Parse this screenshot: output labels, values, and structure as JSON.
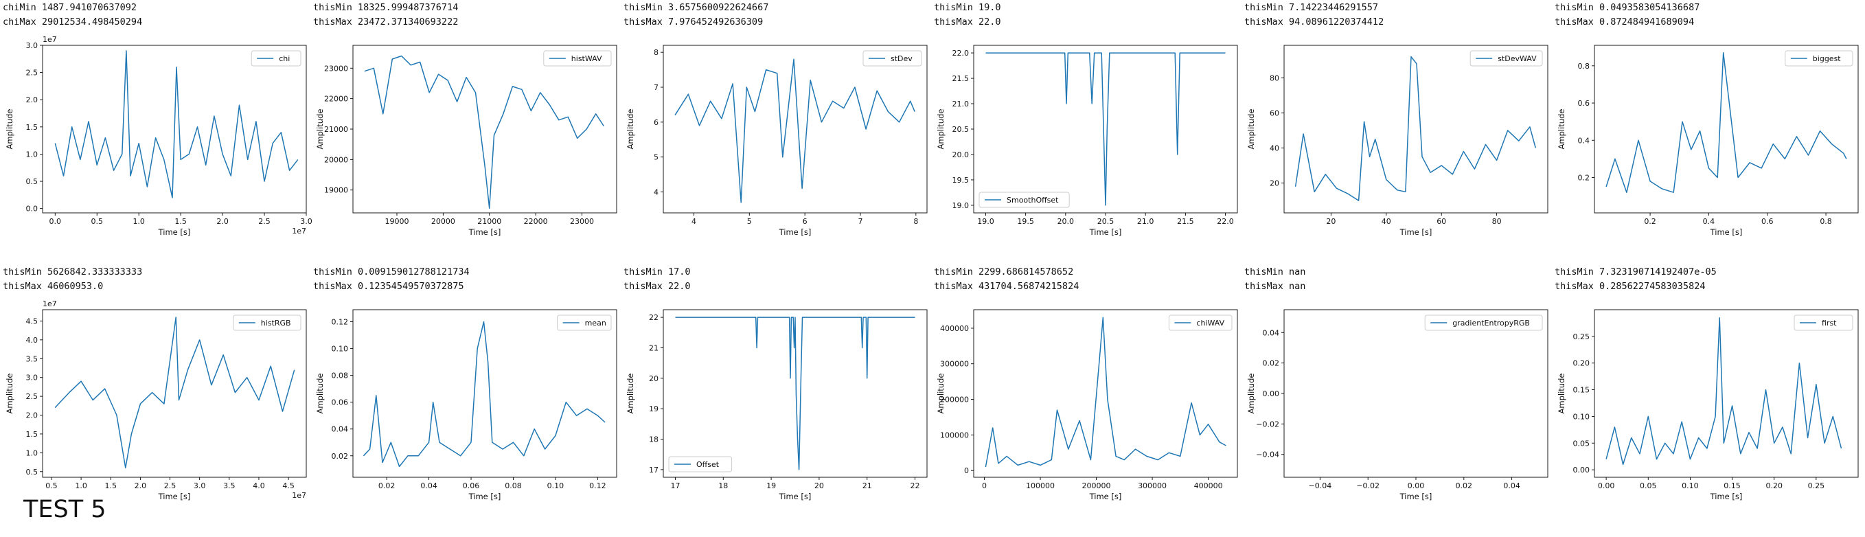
{
  "caption": "TEST 5",
  "line_color": "#1f77b4",
  "chart_data": [
    {
      "type": "line",
      "header": [
        "chiMin 1487.941070637092",
        "chiMax 29012534.498450294"
      ],
      "legend": "chi",
      "legend_loc": "upper right",
      "xlabel": "Time [s]",
      "ylabel": "Amplitude",
      "xlim": [
        -0.15,
        3.0
      ],
      "ylim": [
        -0.08,
        3.0
      ],
      "xticks": [
        0.0,
        0.5,
        1.0,
        1.5,
        2.0,
        2.5,
        3.0
      ],
      "xticklabels": [
        "0.0",
        "0.5",
        "1.0",
        "1.5",
        "2.0",
        "2.5",
        "3.0"
      ],
      "yticks": [
        0.0,
        0.5,
        1.0,
        1.5,
        2.0,
        2.5,
        3.0
      ],
      "yticklabels": [
        "0.0",
        "0.5",
        "1.0",
        "1.5",
        "2.0",
        "2.5",
        "3.0"
      ],
      "xoffset": "1e7",
      "yoffset": "1e7",
      "x": [
        0.0,
        0.1,
        0.2,
        0.3,
        0.4,
        0.5,
        0.6,
        0.7,
        0.8,
        0.85,
        0.9,
        1.0,
        1.1,
        1.2,
        1.3,
        1.4,
        1.45,
        1.5,
        1.6,
        1.7,
        1.8,
        1.9,
        2.0,
        2.1,
        2.2,
        2.3,
        2.4,
        2.5,
        2.6,
        2.7,
        2.8,
        2.9
      ],
      "y": [
        1.2,
        0.6,
        1.5,
        0.9,
        1.6,
        0.8,
        1.3,
        0.7,
        1.0,
        2.9,
        0.6,
        1.2,
        0.4,
        1.3,
        0.9,
        0.2,
        2.6,
        0.9,
        1.0,
        1.5,
        0.8,
        1.7,
        1.0,
        0.6,
        1.9,
        0.9,
        1.6,
        0.5,
        1.2,
        1.4,
        0.7,
        0.9
      ]
    },
    {
      "type": "line",
      "header": [
        "thisMin 18325.999487376714",
        "thisMax 23472.371340693222"
      ],
      "legend": "histWAV",
      "legend_loc": "upper right",
      "xlabel": "Time [s]",
      "ylabel": "Amplitude",
      "xlim": [
        18050,
        23750
      ],
      "ylim": [
        18250,
        23750
      ],
      "xticks": [
        19000,
        20000,
        21000,
        22000,
        23000
      ],
      "xticklabels": [
        "19000",
        "20000",
        "21000",
        "22000",
        "23000"
      ],
      "yticks": [
        19000,
        20000,
        21000,
        22000,
        23000
      ],
      "yticklabels": [
        "19000",
        "20000",
        "21000",
        "22000",
        "23000"
      ],
      "x": [
        18300,
        18500,
        18700,
        18900,
        19100,
        19300,
        19500,
        19700,
        19900,
        20100,
        20300,
        20500,
        20700,
        20900,
        21000,
        21100,
        21300,
        21500,
        21700,
        21900,
        22100,
        22300,
        22500,
        22700,
        22900,
        23100,
        23300,
        23472
      ],
      "y": [
        22900,
        23000,
        21500,
        23300,
        23400,
        23100,
        23200,
        22200,
        22800,
        22600,
        21900,
        22700,
        22200,
        19800,
        18400,
        20800,
        21500,
        22400,
        22300,
        21600,
        22200,
        21800,
        21300,
        21400,
        20700,
        21000,
        21500,
        21100
      ]
    },
    {
      "type": "line",
      "header": [
        "thisMin 3.6575600922624667",
        "thisMax 7.976452492636309"
      ],
      "legend": "stDev",
      "legend_loc": "upper right",
      "xlabel": "Time [s]",
      "ylabel": "Amplitude",
      "xlim": [
        3.45,
        8.2
      ],
      "ylim": [
        3.4,
        8.2
      ],
      "xticks": [
        4,
        5,
        6,
        7,
        8
      ],
      "xticklabels": [
        "4",
        "5",
        "6",
        "7",
        "8"
      ],
      "yticks": [
        4,
        5,
        6,
        7,
        8
      ],
      "yticklabels": [
        "4",
        "5",
        "6",
        "7",
        "8"
      ],
      "x": [
        3.66,
        3.9,
        4.1,
        4.3,
        4.5,
        4.7,
        4.85,
        4.95,
        5.1,
        5.3,
        5.5,
        5.6,
        5.8,
        5.95,
        6.1,
        6.3,
        6.5,
        6.7,
        6.9,
        7.1,
        7.3,
        7.5,
        7.7,
        7.9,
        7.98
      ],
      "y": [
        6.2,
        6.8,
        5.9,
        6.6,
        6.1,
        7.1,
        3.7,
        7.0,
        6.3,
        7.5,
        7.4,
        5.0,
        7.8,
        4.1,
        7.2,
        6.0,
        6.6,
        6.4,
        7.0,
        5.8,
        6.9,
        6.3,
        6.0,
        6.6,
        6.3
      ]
    },
    {
      "type": "line",
      "header": [
        "thisMin 19.0",
        "thisMax 22.0"
      ],
      "legend": "SmoothOffset",
      "legend_loc": "lower left",
      "xlabel": "Time [s]",
      "ylabel": "Amplitude",
      "xlim": [
        18.85,
        22.15
      ],
      "ylim": [
        18.85,
        22.15
      ],
      "xticks": [
        19.0,
        19.5,
        20.0,
        20.5,
        21.0,
        21.5,
        22.0
      ],
      "xticklabels": [
        "19.0",
        "19.5",
        "20.0",
        "20.5",
        "21.0",
        "21.5",
        "22.0"
      ],
      "yticks": [
        19.0,
        19.5,
        20.0,
        20.5,
        21.0,
        21.5,
        22.0
      ],
      "yticklabels": [
        "19.0",
        "19.5",
        "20.0",
        "20.5",
        "21.0",
        "21.5",
        "22.0"
      ],
      "x": [
        19.0,
        19.99,
        20.01,
        20.03,
        20.3,
        20.33,
        20.36,
        20.45,
        20.5,
        20.52,
        20.55,
        21.37,
        21.4,
        21.43,
        22.0
      ],
      "y": [
        22.0,
        22.0,
        21.0,
        22.0,
        22.0,
        21.0,
        22.0,
        22.0,
        19.0,
        20.5,
        22.0,
        22.0,
        20.0,
        22.0,
        22.0
      ]
    },
    {
      "type": "line",
      "header": [
        "thisMin 7.14223446291557",
        "thisMax 94.08961220374412"
      ],
      "legend": "stDevWAV",
      "legend_loc": "upper right",
      "xlabel": "Time [s]",
      "ylabel": "Amplitude",
      "xlim": [
        3.0,
        98.5
      ],
      "ylim": [
        3.0,
        98.5
      ],
      "xticks": [
        20,
        40,
        60,
        80
      ],
      "xticklabels": [
        "20",
        "40",
        "60",
        "80"
      ],
      "yticks": [
        20,
        40,
        60,
        80
      ],
      "yticklabels": [
        "20",
        "40",
        "60",
        "80"
      ],
      "x": [
        7.14,
        10,
        14,
        18,
        22,
        26,
        30,
        32,
        34,
        36,
        40,
        44,
        47,
        49,
        51,
        53,
        56,
        60,
        64,
        68,
        72,
        76,
        80,
        84,
        88,
        92,
        94.09
      ],
      "y": [
        18,
        48,
        15,
        25,
        17,
        14,
        10,
        55,
        35,
        45,
        22,
        16,
        15,
        92,
        88,
        35,
        26,
        30,
        25,
        38,
        28,
        42,
        33,
        50,
        44,
        52,
        40
      ]
    },
    {
      "type": "line",
      "header": [
        "thisMin 0.0493583054136687",
        "thisMax 0.872484941689094"
      ],
      "legend": "biggest",
      "legend_loc": "upper right",
      "xlabel": "Time [s]",
      "ylabel": "Amplitude",
      "xlim": [
        0.01,
        0.91
      ],
      "ylim": [
        0.01,
        0.91
      ],
      "xticks": [
        0.2,
        0.4,
        0.6,
        0.8
      ],
      "xticklabels": [
        "0.2",
        "0.4",
        "0.6",
        "0.8"
      ],
      "yticks": [
        0.2,
        0.4,
        0.6,
        0.8
      ],
      "yticklabels": [
        "0.2",
        "0.4",
        "0.6",
        "0.8"
      ],
      "x": [
        0.05,
        0.08,
        0.12,
        0.16,
        0.2,
        0.24,
        0.28,
        0.31,
        0.34,
        0.37,
        0.4,
        0.43,
        0.45,
        0.47,
        0.5,
        0.54,
        0.58,
        0.62,
        0.66,
        0.7,
        0.74,
        0.78,
        0.82,
        0.86,
        0.87
      ],
      "y": [
        0.15,
        0.3,
        0.12,
        0.4,
        0.18,
        0.14,
        0.12,
        0.5,
        0.35,
        0.45,
        0.25,
        0.2,
        0.87,
        0.6,
        0.2,
        0.28,
        0.25,
        0.38,
        0.3,
        0.42,
        0.32,
        0.45,
        0.38,
        0.33,
        0.3
      ]
    },
    {
      "type": "line",
      "header": [
        "thisMin 5626842.333333333",
        "thisMax 46060953.0"
      ],
      "legend": "histRGB",
      "legend_loc": "upper right",
      "xlabel": "Time [s]",
      "ylabel": "Amplitude",
      "xlim": [
        0.35,
        4.8
      ],
      "ylim": [
        0.35,
        4.8
      ],
      "xticks": [
        0.5,
        1.0,
        1.5,
        2.0,
        2.5,
        3.0,
        3.5,
        4.0,
        4.5
      ],
      "xticklabels": [
        "0.5",
        "1.0",
        "1.5",
        "2.0",
        "2.5",
        "3.0",
        "3.5",
        "4.0",
        "4.5"
      ],
      "yticks": [
        0.5,
        1.0,
        1.5,
        2.0,
        2.5,
        3.0,
        3.5,
        4.0,
        4.5
      ],
      "yticklabels": [
        "0.5",
        "1.0",
        "1.5",
        "2.0",
        "2.5",
        "3.0",
        "3.5",
        "4.0",
        "4.5"
      ],
      "xoffset": "1e7",
      "yoffset": "1e7",
      "x": [
        0.56,
        0.8,
        1.0,
        1.2,
        1.4,
        1.6,
        1.75,
        1.85,
        2.0,
        2.2,
        2.4,
        2.6,
        2.65,
        2.8,
        3.0,
        3.2,
        3.4,
        3.6,
        3.8,
        4.0,
        4.2,
        4.4,
        4.6
      ],
      "y": [
        2.2,
        2.6,
        2.9,
        2.4,
        2.7,
        2.0,
        0.6,
        1.5,
        2.3,
        2.6,
        2.3,
        4.6,
        2.4,
        3.2,
        4.0,
        2.8,
        3.6,
        2.6,
        3.0,
        2.4,
        3.3,
        2.1,
        3.2
      ]
    },
    {
      "type": "line",
      "header": [
        "thisMin 0.009159012788121734",
        "thisMax 0.12354549570372875"
      ],
      "legend": "mean",
      "legend_loc": "upper right",
      "xlabel": "Time [s]",
      "ylabel": "Amplitude",
      "xlim": [
        0.004,
        0.129
      ],
      "ylim": [
        0.004,
        0.129
      ],
      "xticks": [
        0.02,
        0.04,
        0.06,
        0.08,
        0.1,
        0.12
      ],
      "xticklabels": [
        "0.02",
        "0.04",
        "0.06",
        "0.08",
        "0.10",
        "0.12"
      ],
      "yticks": [
        0.02,
        0.04,
        0.06,
        0.08,
        0.1,
        0.12
      ],
      "yticklabels": [
        "0.02",
        "0.04",
        "0.06",
        "0.08",
        "0.10",
        "0.12"
      ],
      "x": [
        0.009,
        0.012,
        0.015,
        0.018,
        0.022,
        0.026,
        0.03,
        0.035,
        0.04,
        0.042,
        0.045,
        0.05,
        0.055,
        0.06,
        0.063,
        0.066,
        0.068,
        0.07,
        0.075,
        0.08,
        0.085,
        0.09,
        0.095,
        0.1,
        0.105,
        0.11,
        0.115,
        0.12,
        0.1235
      ],
      "y": [
        0.02,
        0.025,
        0.065,
        0.015,
        0.03,
        0.012,
        0.02,
        0.02,
        0.03,
        0.06,
        0.03,
        0.025,
        0.02,
        0.03,
        0.1,
        0.12,
        0.09,
        0.03,
        0.025,
        0.03,
        0.02,
        0.04,
        0.025,
        0.035,
        0.06,
        0.05,
        0.055,
        0.05,
        0.045
      ]
    },
    {
      "type": "line",
      "header": [
        "thisMin 17.0",
        "thisMax 22.0"
      ],
      "legend": "Offset",
      "legend_loc": "lower left",
      "xlabel": "Time [s]",
      "ylabel": "Amplitude",
      "xlim": [
        16.75,
        22.25
      ],
      "ylim": [
        16.75,
        22.25
      ],
      "xticks": [
        17,
        18,
        19,
        20,
        21,
        22
      ],
      "xticklabels": [
        "17",
        "18",
        "19",
        "20",
        "21",
        "22"
      ],
      "yticks": [
        17,
        18,
        19,
        20,
        21,
        22
      ],
      "yticklabels": [
        "17",
        "18",
        "19",
        "20",
        "21",
        "22"
      ],
      "x": [
        17.0,
        18.68,
        18.7,
        18.72,
        19.38,
        19.4,
        19.42,
        19.46,
        19.48,
        19.5,
        19.52,
        19.55,
        19.58,
        19.62,
        19.65,
        20.88,
        20.9,
        20.92,
        20.98,
        21.0,
        21.02,
        22.0
      ],
      "y": [
        22.0,
        22.0,
        21.0,
        22.0,
        22.0,
        20.0,
        22.0,
        22.0,
        21.0,
        22.0,
        19.5,
        18.0,
        17.0,
        20.0,
        22.0,
        22.0,
        21.0,
        22.0,
        22.0,
        20.0,
        22.0,
        22.0
      ]
    },
    {
      "type": "line",
      "header": [
        "thisMin 2299.686814578652",
        "thisMax 431704.56874215824"
      ],
      "legend": "chiWAV",
      "legend_loc": "upper right",
      "xlabel": "Time [s]",
      "ylabel": "Amplitude",
      "xlim": [
        -19000,
        452000
      ],
      "ylim": [
        -19000,
        452000
      ],
      "xticks": [
        0,
        100000,
        200000,
        300000,
        400000
      ],
      "xticklabels": [
        "0",
        "100000",
        "200000",
        "300000",
        "400000"
      ],
      "yticks": [
        0,
        100000,
        200000,
        300000,
        400000
      ],
      "yticklabels": [
        "0",
        "100000",
        "200000",
        "300000",
        "400000"
      ],
      "x": [
        2300,
        15000,
        25000,
        40000,
        60000,
        80000,
        100000,
        120000,
        130000,
        150000,
        170000,
        190000,
        205000,
        212000,
        220000,
        235000,
        250000,
        270000,
        290000,
        310000,
        330000,
        350000,
        370000,
        385000,
        400000,
        420000,
        431700
      ],
      "y": [
        10000,
        120000,
        20000,
        40000,
        15000,
        25000,
        15000,
        30000,
        170000,
        60000,
        140000,
        30000,
        300000,
        430000,
        200000,
        40000,
        30000,
        60000,
        40000,
        30000,
        50000,
        40000,
        190000,
        100000,
        130000,
        80000,
        70000
      ]
    },
    {
      "type": "line",
      "header": [
        "thisMin nan",
        "thisMax nan"
      ],
      "legend": "gradientEntropyRGB",
      "legend_loc": "upper right",
      "xlabel": "Time [s]",
      "ylabel": "Amplitude",
      "xlim": [
        -0.055,
        0.055
      ],
      "ylim": [
        -0.055,
        0.055
      ],
      "xticks": [
        -0.04,
        -0.02,
        0.0,
        0.02,
        0.04
      ],
      "xticklabels": [
        "−0.04",
        "−0.02",
        "0.00",
        "0.02",
        "0.04"
      ],
      "yticks": [
        -0.04,
        -0.02,
        0.0,
        0.02,
        0.04
      ],
      "yticklabels": [
        "−0.04",
        "−0.02",
        "0.00",
        "0.02",
        "0.04"
      ],
      "x": [],
      "y": []
    },
    {
      "type": "line",
      "header": [
        "thisMin 7.323190714192407e-05",
        "thisMax 0.28562274583035824"
      ],
      "legend": "first",
      "legend_loc": "upper right",
      "xlabel": "Time [s]",
      "ylabel": "Amplitude",
      "xlim": [
        -0.014,
        0.3
      ],
      "ylim": [
        -0.014,
        0.3
      ],
      "xticks": [
        0.0,
        0.05,
        0.1,
        0.15,
        0.2,
        0.25
      ],
      "xticklabels": [
        "0.00",
        "0.05",
        "0.10",
        "0.15",
        "0.20",
        "0.25"
      ],
      "yticks": [
        0.0,
        0.05,
        0.1,
        0.15,
        0.2,
        0.25
      ],
      "yticklabels": [
        "0.00",
        "0.05",
        "0.10",
        "0.15",
        "0.20",
        "0.25"
      ],
      "x": [
        0.0,
        0.01,
        0.02,
        0.03,
        0.04,
        0.05,
        0.06,
        0.07,
        0.08,
        0.09,
        0.1,
        0.11,
        0.12,
        0.13,
        0.135,
        0.14,
        0.15,
        0.16,
        0.17,
        0.18,
        0.19,
        0.2,
        0.21,
        0.22,
        0.23,
        0.24,
        0.25,
        0.26,
        0.27,
        0.28
      ],
      "y": [
        0.02,
        0.08,
        0.01,
        0.06,
        0.03,
        0.1,
        0.02,
        0.05,
        0.03,
        0.09,
        0.02,
        0.06,
        0.04,
        0.1,
        0.285,
        0.05,
        0.12,
        0.03,
        0.07,
        0.04,
        0.15,
        0.05,
        0.08,
        0.03,
        0.2,
        0.06,
        0.16,
        0.05,
        0.1,
        0.04
      ]
    }
  ]
}
